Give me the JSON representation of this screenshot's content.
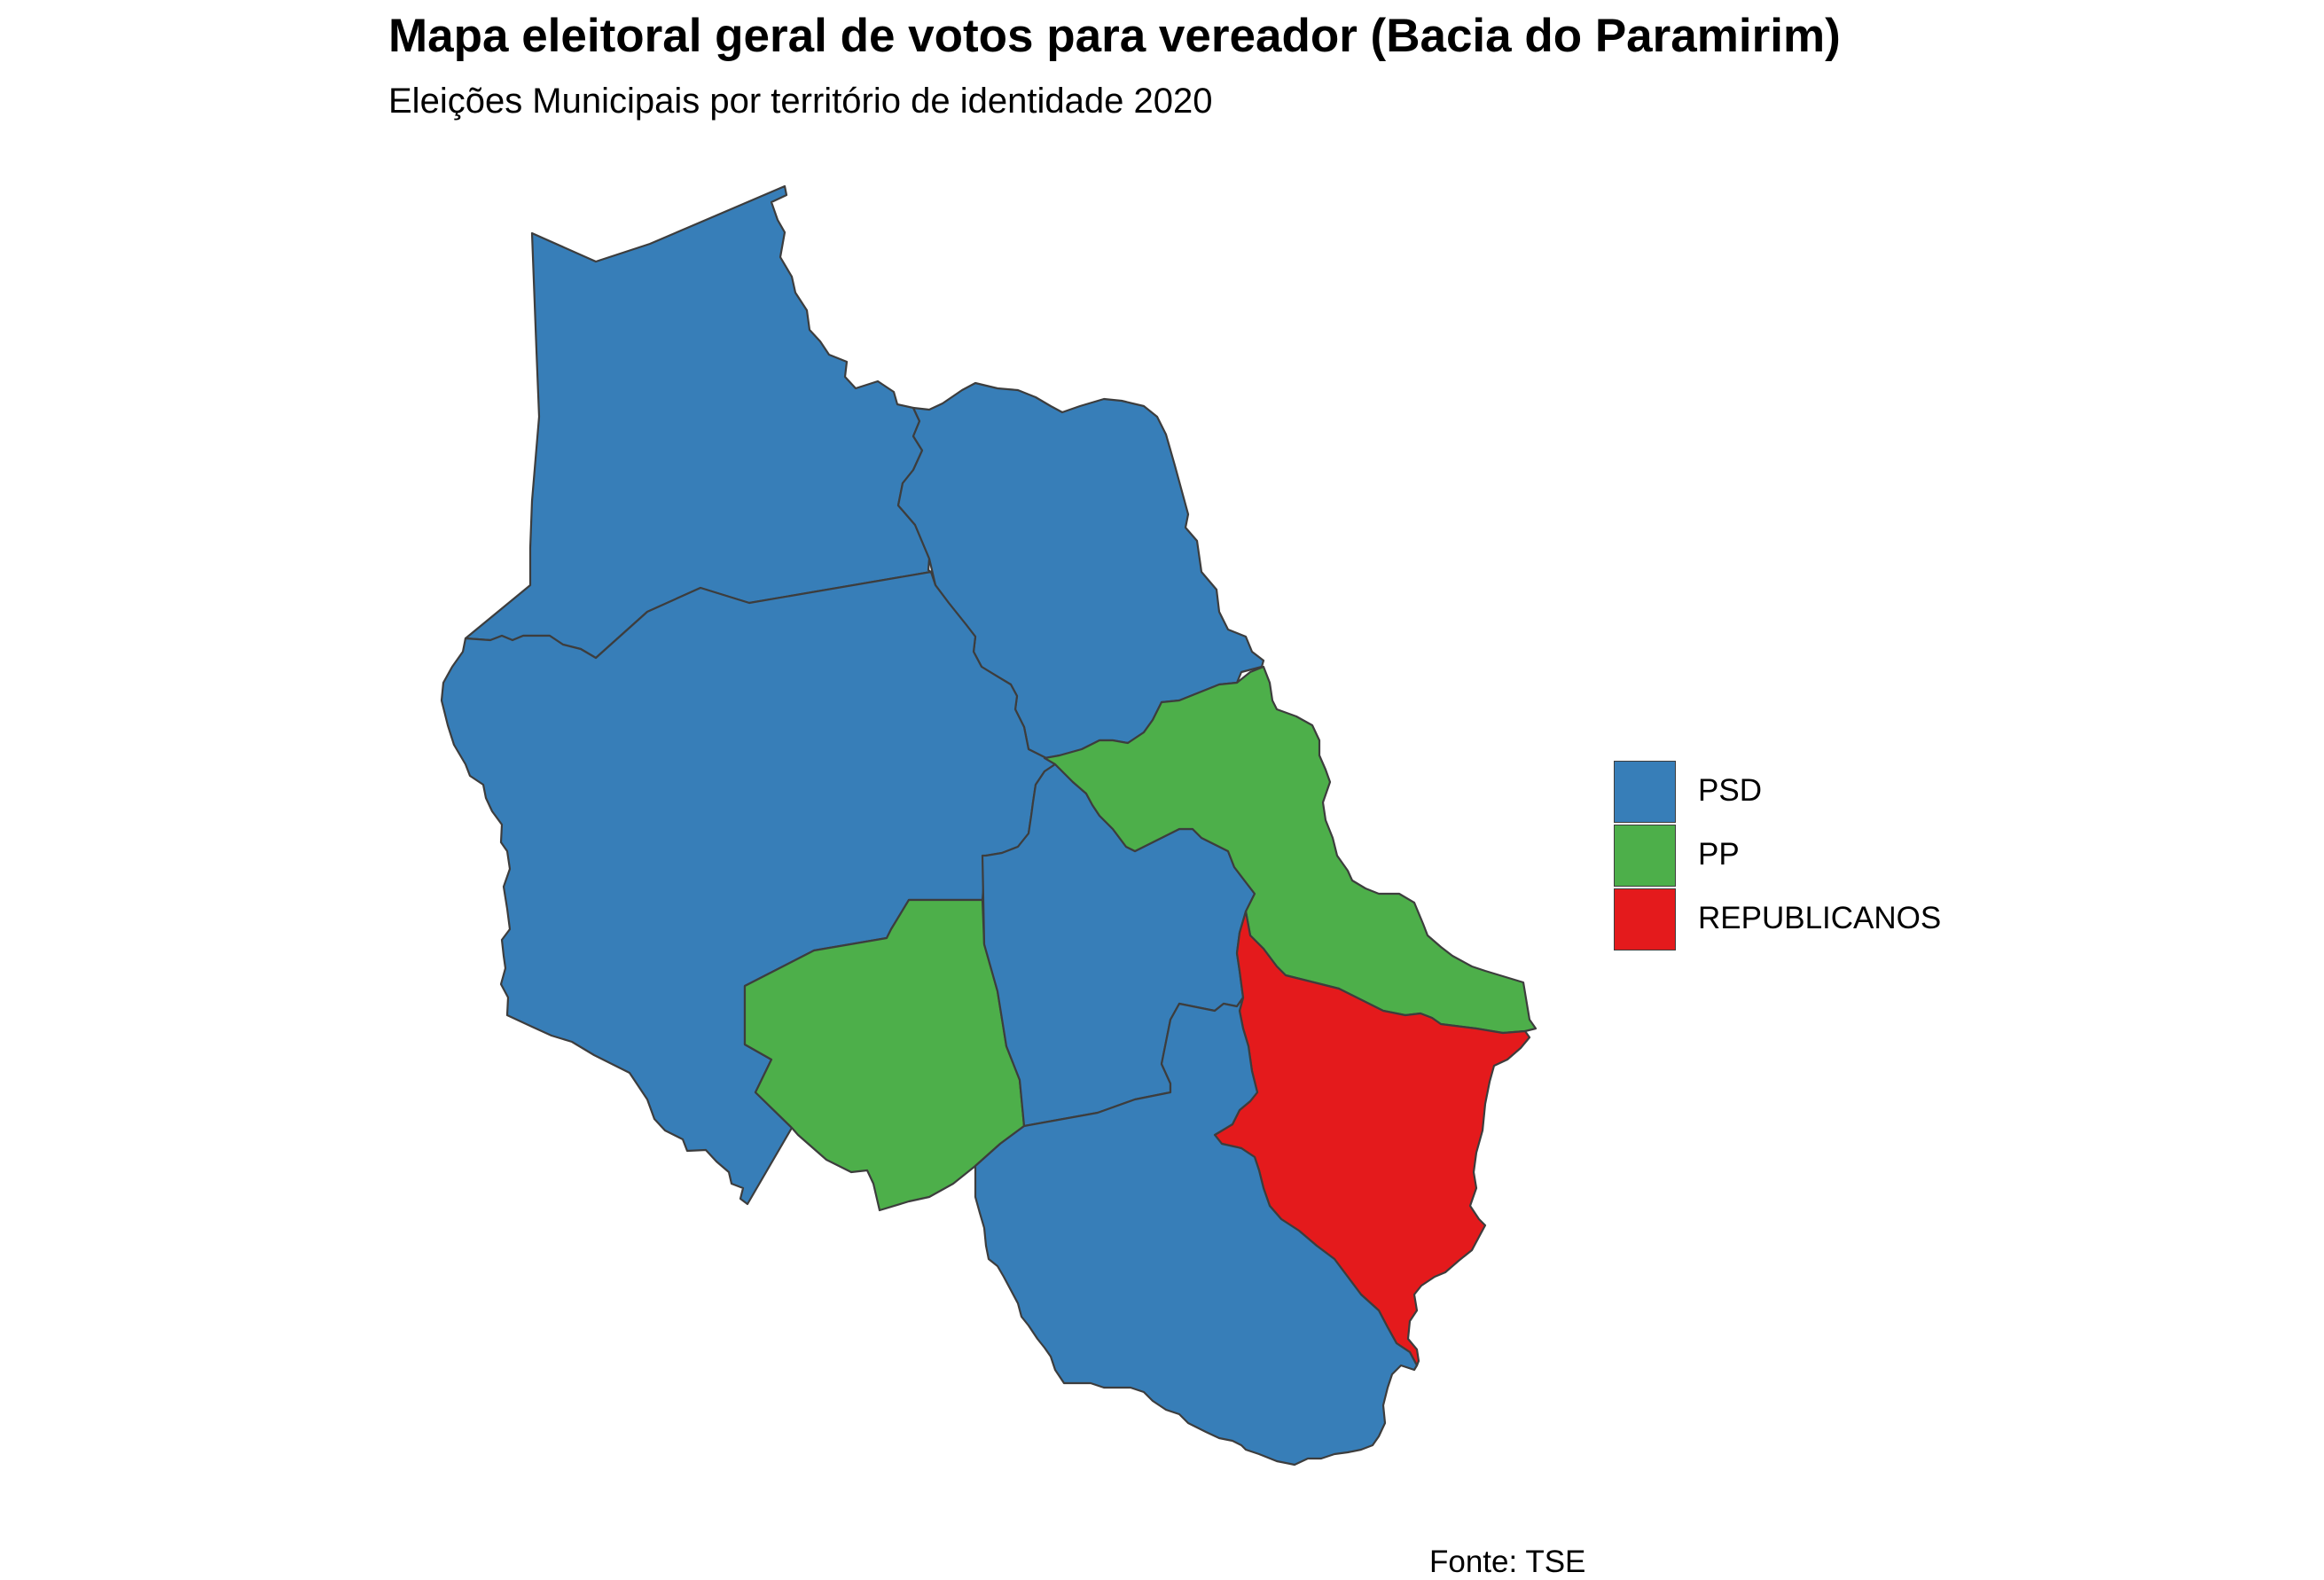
{
  "title": "Mapa eleitoral geral de votos para vereador (Bacia do Paramirim)",
  "subtitle": "Eleições Municipais por território de identidade 2020",
  "caption": "Fonte: TSE",
  "legend": {
    "items": [
      {
        "label": "PSD",
        "color": "#377EB8"
      },
      {
        "label": "PP",
        "color": "#4DAF4A"
      },
      {
        "label": "REPUBLICANOS",
        "color": "#E41A1C"
      }
    ]
  },
  "map": {
    "region": "Bacia do Paramirim",
    "municipalities": [
      {
        "party": "PSD",
        "color": "#377EB8"
      },
      {
        "party": "PSD",
        "color": "#377EB8"
      },
      {
        "party": "PSD",
        "color": "#377EB8"
      },
      {
        "party": "PP",
        "color": "#4DAF4A"
      },
      {
        "party": "PSD",
        "color": "#377EB8"
      },
      {
        "party": "PP",
        "color": "#4DAF4A"
      },
      {
        "party": "REPUBLICANOS",
        "color": "#E41A1C"
      },
      {
        "party": "PSD",
        "color": "#377EB8"
      }
    ]
  }
}
